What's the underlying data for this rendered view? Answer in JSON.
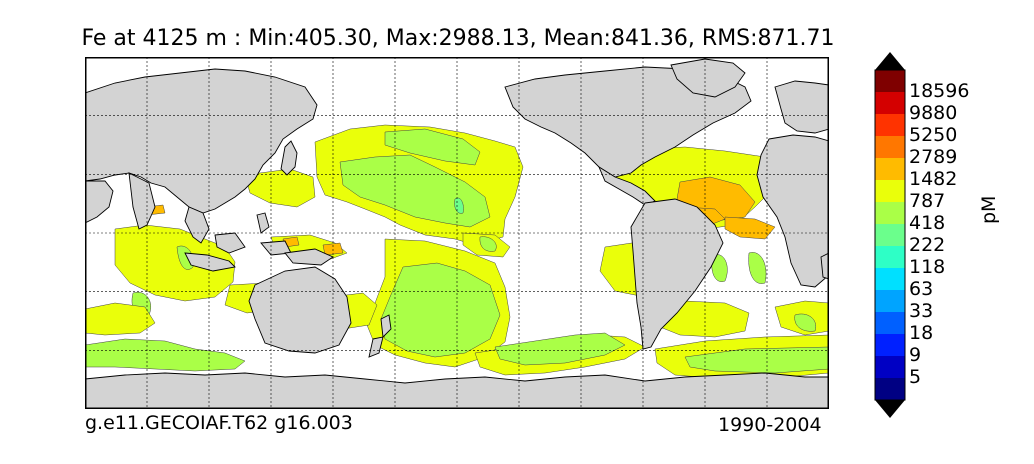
{
  "title": "Fe at 4125 m : Min:405.30, Max:2988.13, Mean:841.36, RMS:871.71",
  "footer": {
    "case": "g.e11.GECOIAF.T62 g16.003",
    "period": "1990-2004"
  },
  "colorbar": {
    "unit": "pM",
    "levels": [
      "18596",
      "9880",
      "5250",
      "2789",
      "1482",
      "787",
      "418",
      "222",
      "118",
      "63",
      "33",
      "18",
      "9",
      "5"
    ],
    "colors": [
      "#7f0000",
      "#d40000",
      "#ff3300",
      "#ff7700",
      "#ffbb00",
      "#eaff0a",
      "#aaff47",
      "#6bff8c",
      "#2effc6",
      "#00e0ff",
      "#00a4ff",
      "#0060ff",
      "#0020ff",
      "#0000c4",
      "#000083"
    ],
    "extend": "both"
  },
  "map": {
    "projection": "global lon-lat, Pacific centered",
    "land_color": "#d3d3d3",
    "ocean_color": "#ffffff",
    "graticule": "dotted"
  }
}
